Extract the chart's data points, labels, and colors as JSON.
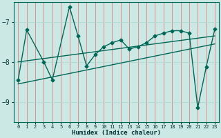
{
  "xlabel": "Humidex (Indice chaleur)",
  "background_color": "#cce8e4",
  "grid_color": "#f08080",
  "line_color": "#006655",
  "ylim": [
    -9.5,
    -6.5
  ],
  "xlim": [
    -0.5,
    23.5
  ],
  "x_ticks": [
    0,
    1,
    2,
    3,
    4,
    5,
    6,
    7,
    8,
    9,
    10,
    11,
    12,
    13,
    14,
    15,
    16,
    17,
    18,
    19,
    20,
    21,
    22,
    23
  ],
  "y_ticks": [
    -9,
    -8,
    -7
  ],
  "series1_x": [
    0,
    1,
    3,
    4,
    6,
    7,
    8,
    9,
    10,
    11,
    12,
    13,
    14,
    15,
    16,
    17,
    18,
    19,
    20,
    21,
    22,
    23
  ],
  "series1_y": [
    -8.45,
    -7.2,
    -8.0,
    -8.45,
    -6.62,
    -7.35,
    -8.1,
    -7.82,
    -7.62,
    -7.52,
    -7.45,
    -7.68,
    -7.62,
    -7.52,
    -7.35,
    -7.28,
    -7.22,
    -7.22,
    -7.28,
    -9.15,
    -8.12,
    -7.18
  ],
  "trend1_x": [
    0,
    23
  ],
  "trend1_y": [
    -8.0,
    -7.35
  ],
  "trend2_x": [
    0,
    23
  ],
  "trend2_y": [
    -8.55,
    -7.55
  ]
}
